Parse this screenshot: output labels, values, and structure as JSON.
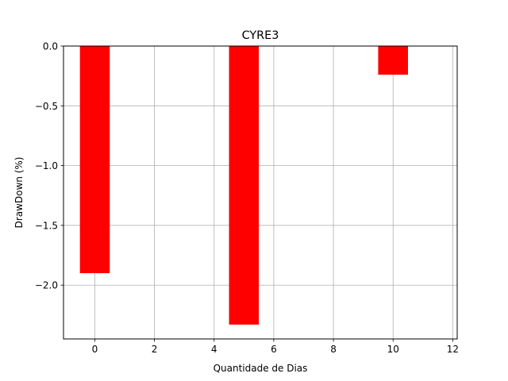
{
  "chart_data": {
    "type": "bar",
    "title": "CYRE3",
    "xlabel": "Quantidade de Dias",
    "ylabel": "DrawDown (%)",
    "x": [
      0,
      5,
      10
    ],
    "values": [
      -1.9,
      -2.33,
      -0.24
    ],
    "bar_width": 1,
    "xlim": [
      -1.05,
      12.15
    ],
    "ylim": [
      -2.45,
      0.0
    ],
    "xticks": [
      0,
      2,
      4,
      6,
      8,
      10,
      12
    ],
    "xtick_labels": [
      "0",
      "2",
      "4",
      "6",
      "8",
      "10",
      "12"
    ],
    "yticks": [
      0.0,
      -0.5,
      -1.0,
      -1.5,
      -2.0
    ],
    "ytick_labels": [
      "0.0",
      "−0.5",
      "−1.0",
      "−1.5",
      "−2.0"
    ],
    "grid": true,
    "colors": {
      "bar": "#ff0000",
      "grid": "#b0b0b0",
      "axis": "#000000"
    }
  }
}
